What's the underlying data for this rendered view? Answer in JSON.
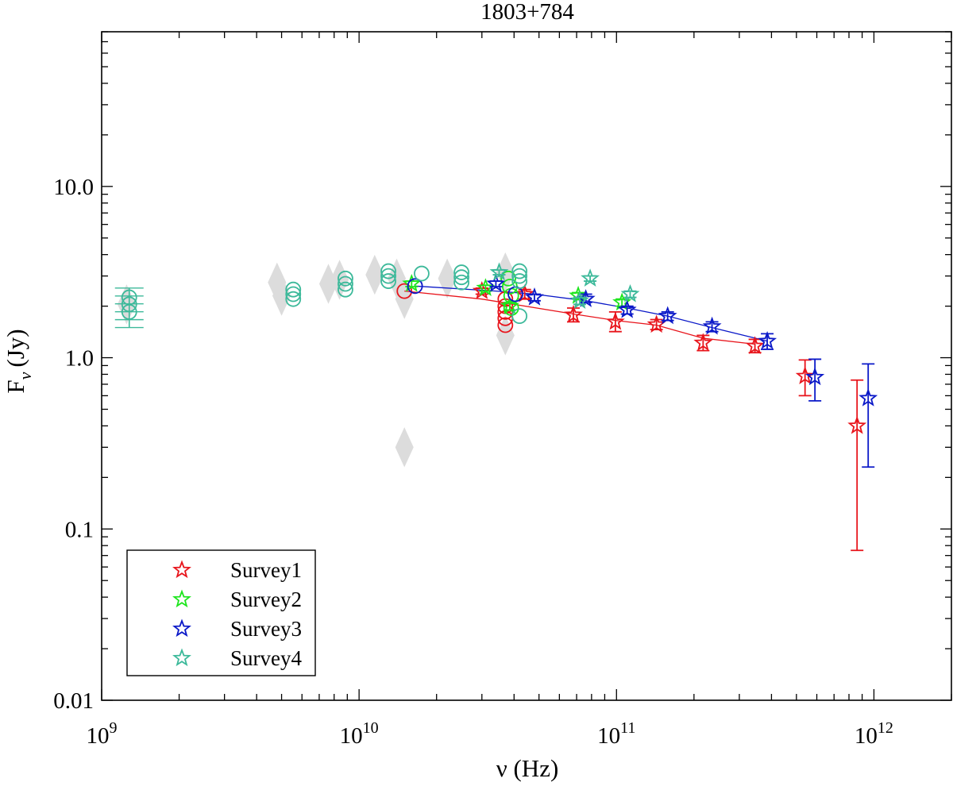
{
  "chart_data": {
    "type": "scatter",
    "title": "1803+784",
    "xlabel": "ν (Hz)",
    "ylabel_main": "F",
    "ylabel_sub": "ν",
    "ylabel_unit": "(Jy)",
    "xscale": "log",
    "yscale": "log",
    "xlim": [
      1000000000.0,
      2000000000000.0
    ],
    "ylim": [
      0.01,
      80
    ],
    "x_ticks": [
      {
        "value": 1000000000.0,
        "base": "10",
        "exp": "9"
      },
      {
        "value": 10000000000.0,
        "base": "10",
        "exp": "10"
      },
      {
        "value": 100000000000.0,
        "base": "10",
        "exp": "11"
      },
      {
        "value": 1000000000000.0,
        "base": "10",
        "exp": "12"
      }
    ],
    "y_ticks": [
      {
        "value": 0.01,
        "label": "0.01"
      },
      {
        "value": 0.1,
        "label": "0.1"
      },
      {
        "value": 1,
        "label": "1.0"
      },
      {
        "value": 10,
        "label": "10.0"
      }
    ],
    "legend": {
      "position": "bottom-left",
      "entries": [
        {
          "name": "Survey1",
          "color": "#e8141b"
        },
        {
          "name": "Survey2",
          "color": "#1de51d"
        },
        {
          "name": "Survey3",
          "color": "#0a18c8"
        },
        {
          "name": "Survey4",
          "color": "#3cb99a"
        }
      ]
    },
    "background_points": {
      "color": "#dcdcdc",
      "points": [
        {
          "x": 1250000000.0,
          "y": 2.05
        },
        {
          "x": 4800000000.0,
          "y": 2.75
        },
        {
          "x": 5000000000.0,
          "y": 2.3
        },
        {
          "x": 7600000000.0,
          "y": 2.7
        },
        {
          "x": 8400000000.0,
          "y": 2.85
        },
        {
          "x": 11500000000.0,
          "y": 3.05
        },
        {
          "x": 14000000000.0,
          "y": 2.9
        },
        {
          "x": 15000000000.0,
          "y": 2.2
        },
        {
          "x": 15000000000.0,
          "y": 0.3
        },
        {
          "x": 22000000000.0,
          "y": 2.9
        },
        {
          "x": 37000000000.0,
          "y": 3.15
        },
        {
          "x": 37000000000.0,
          "y": 1.35
        }
      ]
    },
    "series": [
      {
        "name": "Survey1",
        "color": "#e8141b",
        "stars": [
          {
            "x": 30000000000.0,
            "y": 2.45,
            "err": [
              2.35,
              2.55
            ]
          },
          {
            "x": 44000000000.0,
            "y": 2.35,
            "err": [
              2.2,
              2.5
            ]
          },
          {
            "x": 68000000000.0,
            "y": 1.78,
            "err": [
              1.62,
              1.95
            ]
          },
          {
            "x": 99000000000.0,
            "y": 1.62,
            "err": [
              1.42,
              1.85
            ]
          },
          {
            "x": 143000000000.0,
            "y": 1.56,
            "err": [
              1.46,
              1.67
            ]
          },
          {
            "x": 217000000000.0,
            "y": 1.22,
            "err": [
              1.1,
              1.35
            ]
          },
          {
            "x": 345000000000.0,
            "y": 1.17,
            "err": [
              1.07,
              1.28
            ]
          },
          {
            "x": 540000000000.0,
            "y": 0.78,
            "err": [
              0.6,
              0.97
            ]
          },
          {
            "x": 860000000000.0,
            "y": 0.4,
            "err": [
              0.075,
              0.74
            ]
          }
        ],
        "circles": [
          {
            "x": 15000000000.0,
            "y": 2.45
          },
          {
            "x": 37000000000.0,
            "y": 2.2
          },
          {
            "x": 37000000000.0,
            "y": 2.0
          },
          {
            "x": 37000000000.0,
            "y": 1.85
          },
          {
            "x": 37000000000.0,
            "y": 1.7
          },
          {
            "x": 37000000000.0,
            "y": 1.55
          }
        ],
        "line": [
          {
            "x": 15000000000.0,
            "y": 2.45
          },
          {
            "x": 30000000000.0,
            "y": 2.2
          },
          {
            "x": 68000000000.0,
            "y": 1.8
          },
          {
            "x": 99000000000.0,
            "y": 1.65
          },
          {
            "x": 143000000000.0,
            "y": 1.55
          },
          {
            "x": 217000000000.0,
            "y": 1.3
          },
          {
            "x": 345000000000.0,
            "y": 1.2
          }
        ]
      },
      {
        "name": "Survey2",
        "color": "#1de51d",
        "stars": [
          {
            "x": 16000000000.0,
            "y": 2.7,
            "err": [
              2.6,
              2.8
            ]
          },
          {
            "x": 31000000000.0,
            "y": 2.55,
            "err": [
              2.45,
              2.65
            ]
          },
          {
            "x": 38500000000.0,
            "y": 2.0,
            "err": [
              1.9,
              2.1
            ]
          },
          {
            "x": 71000000000.0,
            "y": 2.3,
            "err": [
              2.2,
              2.4
            ]
          },
          {
            "x": 105000000000.0,
            "y": 2.1,
            "err": [
              2.0,
              2.2
            ]
          }
        ],
        "circles": [
          {
            "x": 38000000000.0,
            "y": 2.9
          },
          {
            "x": 38500000000.0,
            "y": 2.6
          },
          {
            "x": 39000000000.0,
            "y": 2.3
          },
          {
            "x": 39000000000.0,
            "y": 1.95
          }
        ],
        "line": []
      },
      {
        "name": "Survey3",
        "color": "#0a18c8",
        "stars": [
          {
            "x": 34000000000.0,
            "y": 2.7,
            "err": [
              2.6,
              2.8
            ]
          },
          {
            "x": 48000000000.0,
            "y": 2.25,
            "err": [
              2.15,
              2.35
            ]
          },
          {
            "x": 76000000000.0,
            "y": 2.2,
            "err": [
              2.1,
              2.35
            ]
          },
          {
            "x": 110000000000.0,
            "y": 1.9,
            "err": [
              1.8,
              2.0
            ]
          },
          {
            "x": 158000000000.0,
            "y": 1.75,
            "err": [
              1.65,
              1.85
            ]
          },
          {
            "x": 235000000000.0,
            "y": 1.52,
            "err": [
              1.42,
              1.62
            ]
          },
          {
            "x": 385000000000.0,
            "y": 1.25,
            "err": [
              1.12,
              1.38
            ]
          },
          {
            "x": 590000000000.0,
            "y": 0.77,
            "err": [
              0.56,
              0.98
            ]
          },
          {
            "x": 950000000000.0,
            "y": 0.58,
            "err": [
              0.23,
              0.92
            ]
          }
        ],
        "circles": [
          {
            "x": 16500000000.0,
            "y": 2.62
          },
          {
            "x": 40500000000.0,
            "y": 2.35
          }
        ],
        "line": [
          {
            "x": 16500000000.0,
            "y": 2.62
          },
          {
            "x": 34000000000.0,
            "y": 2.45
          },
          {
            "x": 48000000000.0,
            "y": 2.35
          },
          {
            "x": 76000000000.0,
            "y": 2.15
          },
          {
            "x": 110000000000.0,
            "y": 1.95
          },
          {
            "x": 158000000000.0,
            "y": 1.75
          },
          {
            "x": 235000000000.0,
            "y": 1.5
          },
          {
            "x": 385000000000.0,
            "y": 1.25
          }
        ]
      },
      {
        "name": "Survey4",
        "color": "#3cb99a",
        "stars": [
          {
            "x": 35000000000.0,
            "y": 3.15,
            "err": [
              3.05,
              3.25
            ]
          },
          {
            "x": 79000000000.0,
            "y": 2.9,
            "err": [
              2.8,
              3.0
            ]
          },
          {
            "x": 113000000000.0,
            "y": 2.35,
            "err": [
              2.25,
              2.45
            ]
          },
          {
            "x": 72000000000.0,
            "y": 2.15,
            "err": [
              2.05,
              2.25
            ]
          }
        ],
        "circles": [
          {
            "x": 1280000000.0,
            "y": 2.25
          },
          {
            "x": 1280000000.0,
            "y": 2.05
          },
          {
            "x": 1280000000.0,
            "y": 1.85
          },
          {
            "x": 5550000000.0,
            "y": 2.5
          },
          {
            "x": 5550000000.0,
            "y": 2.35
          },
          {
            "x": 5550000000.0,
            "y": 2.2
          },
          {
            "x": 8850000000.0,
            "y": 2.9
          },
          {
            "x": 8850000000.0,
            "y": 2.7
          },
          {
            "x": 8850000000.0,
            "y": 2.5
          },
          {
            "x": 13000000000.0,
            "y": 3.2
          },
          {
            "x": 13000000000.0,
            "y": 3.0
          },
          {
            "x": 13000000000.0,
            "y": 2.8
          },
          {
            "x": 17500000000.0,
            "y": 3.1
          },
          {
            "x": 25000000000.0,
            "y": 3.15
          },
          {
            "x": 25000000000.0,
            "y": 2.95
          },
          {
            "x": 25000000000.0,
            "y": 2.75
          },
          {
            "x": 42000000000.0,
            "y": 3.2
          },
          {
            "x": 42000000000.0,
            "y": 3.0
          },
          {
            "x": 42000000000.0,
            "y": 2.8
          },
          {
            "x": 42000000000.0,
            "y": 1.75
          }
        ],
        "circle_errors": [
          {
            "x": 1280000000.0,
            "err": [
              1.5,
              2.55
            ]
          }
        ],
        "line": []
      }
    ]
  }
}
